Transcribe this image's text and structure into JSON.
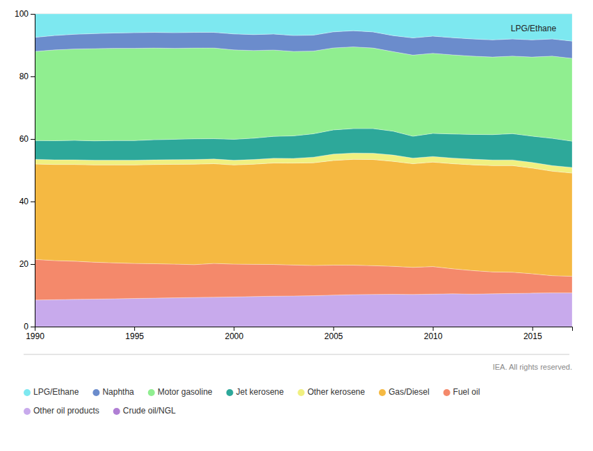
{
  "chart_data": {
    "type": "area",
    "stacked": true,
    "x": [
      1990,
      1991,
      1992,
      1993,
      1994,
      1995,
      1996,
      1997,
      1998,
      1999,
      2000,
      2001,
      2002,
      2003,
      2004,
      2005,
      2006,
      2007,
      2008,
      2009,
      2010,
      2011,
      2012,
      2013,
      2014,
      2015,
      2016,
      2017
    ],
    "series": [
      {
        "name": "Crude oil/NGL",
        "color": "#b07fd4",
        "values": [
          0.0,
          0.0,
          0.0,
          0.0,
          0.0,
          0.0,
          0.0,
          0.0,
          0.0,
          0.0,
          0.0,
          0.0,
          0.0,
          0.0,
          0.0,
          0.0,
          0.0,
          0.0,
          0.0,
          0.0,
          0.0,
          0.0,
          0.0,
          0.0,
          0.0,
          0.0,
          0.0,
          0.0
        ]
      },
      {
        "name": "Other oil products",
        "color": "#c8aaec",
        "values": [
          8.5,
          8.61,
          8.71,
          8.8,
          8.9,
          9.0,
          9.11,
          9.2,
          9.31,
          9.4,
          9.5,
          9.61,
          9.74,
          9.8,
          9.88,
          10.08,
          10.23,
          10.3,
          10.35,
          10.28,
          10.4,
          10.5,
          10.41,
          10.5,
          10.6,
          10.7,
          10.8,
          10.8
        ]
      },
      {
        "name": "Fuel oil",
        "color": "#f4896b",
        "values": [
          13.0,
          12.51,
          12.21,
          11.8,
          11.5,
          11.2,
          11.01,
          10.8,
          10.51,
          10.8,
          10.5,
          10.31,
          10.14,
          9.9,
          9.68,
          9.58,
          9.42,
          9.19,
          8.94,
          8.68,
          8.8,
          8.0,
          7.51,
          7.0,
          6.8,
          6.2,
          5.5,
          5.3
        ]
      },
      {
        "name": "Gas/Diesel",
        "color": "#f5b942",
        "values": [
          30.5,
          30.73,
          30.93,
          31.1,
          31.3,
          31.5,
          31.73,
          31.9,
          32.13,
          31.9,
          31.7,
          32.03,
          32.43,
          32.6,
          32.83,
          33.47,
          33.84,
          33.94,
          33.57,
          33.13,
          33.4,
          33.6,
          33.83,
          34.0,
          34.1,
          33.8,
          33.4,
          33.0
        ]
      },
      {
        "name": "Other kerosene",
        "color": "#f0f080",
        "values": [
          1.5,
          1.5,
          1.5,
          1.5,
          1.5,
          1.5,
          1.5,
          1.5,
          1.5,
          1.5,
          1.5,
          1.5,
          1.51,
          1.5,
          1.8,
          2.02,
          2.03,
          2.02,
          2.01,
          1.8,
          1.8,
          1.8,
          1.8,
          1.8,
          1.8,
          1.8,
          1.8,
          1.8
        ]
      },
      {
        "name": "Jet kerosene",
        "color": "#2da89a",
        "values": [
          6.0,
          6.11,
          6.21,
          6.2,
          6.3,
          6.3,
          6.41,
          6.5,
          6.61,
          6.5,
          6.7,
          6.81,
          7.03,
          7.2,
          7.48,
          7.76,
          7.8,
          7.88,
          7.64,
          6.99,
          7.4,
          7.7,
          7.91,
          8.1,
          8.4,
          8.4,
          8.7,
          8.4
        ]
      },
      {
        "name": "Motor gasoline",
        "color": "#90ee90",
        "values": [
          28.5,
          29.03,
          29.23,
          29.5,
          29.5,
          29.5,
          29.33,
          29.1,
          29.03,
          29.0,
          28.6,
          28.03,
          27.61,
          27.0,
          26.45,
          26.21,
          26.14,
          25.76,
          25.43,
          25.95,
          25.6,
          25.3,
          25.02,
          24.8,
          24.8,
          25.3,
          26.3,
          26.5
        ]
      },
      {
        "name": "Naphtha",
        "color": "#6b8ccc",
        "values": [
          4.5,
          4.6,
          4.7,
          4.8,
          4.9,
          5.0,
          5.0,
          5.0,
          5.0,
          5.0,
          5.1,
          5.1,
          5.12,
          5.1,
          5.09,
          5.14,
          5.17,
          5.15,
          5.13,
          5.49,
          5.5,
          5.5,
          5.51,
          5.5,
          5.5,
          5.5,
          5.5,
          5.5
        ]
      },
      {
        "name": "LPG/Ethane",
        "color": "#7de8f0",
        "values": [
          7.5,
          6.91,
          6.51,
          6.3,
          6.1,
          6.0,
          5.91,
          6.0,
          5.91,
          5.9,
          6.4,
          6.61,
          6.42,
          6.9,
          6.79,
          5.74,
          5.37,
          5.76,
          6.93,
          7.68,
          7.1,
          7.6,
          8.01,
          8.3,
          8.0,
          8.3,
          8.0,
          8.7
        ]
      }
    ],
    "xlim": [
      1990,
      2017
    ],
    "ylim": [
      0,
      100
    ],
    "xticks": [
      1990,
      1995,
      2000,
      2005,
      2010,
      2015
    ],
    "yticks": [
      0,
      20,
      40,
      60,
      80,
      100
    ],
    "grid": true,
    "legend": "bottom",
    "annotations": [
      {
        "text": "LPG/Ethane",
        "x": 2016.2,
        "y": 96.5
      }
    ],
    "caption": "IEA. All rights reserved."
  }
}
